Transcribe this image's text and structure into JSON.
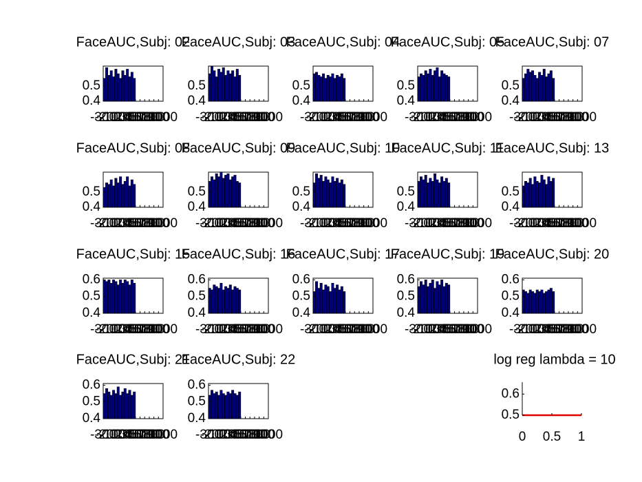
{
  "chart_data": [
    {
      "type": "bar",
      "title": "FaceAUC,Subj: 02",
      "x": [
        -300,
        -250,
        -200,
        -150,
        -100,
        -50,
        0,
        50,
        100,
        150,
        200,
        250,
        300,
        350
      ],
      "values": [
        0.55,
        0.62,
        0.57,
        0.6,
        0.56,
        0.61,
        0.58,
        0.55,
        0.6,
        0.57,
        0.61,
        0.56,
        0.59,
        0.55
      ],
      "xlim": [
        -300,
        1000
      ],
      "xticks": [
        -300,
        -200,
        -100,
        0,
        100,
        200,
        300,
        400,
        500,
        600,
        700,
        800,
        900,
        1000
      ],
      "ylim": [
        0.4,
        0.63
      ],
      "yticks": [
        0.4,
        0.5
      ],
      "color": "#00007f"
    },
    {
      "type": "bar",
      "title": "FaceAUC,Subj: 03",
      "x": [
        -300,
        -250,
        -200,
        -150,
        -100,
        -50,
        0,
        50,
        100,
        150,
        200,
        250,
        300,
        350
      ],
      "values": [
        0.58,
        0.63,
        0.6,
        0.56,
        0.61,
        0.59,
        0.62,
        0.57,
        0.6,
        0.58,
        0.6,
        0.56,
        0.61,
        0.57
      ],
      "xlim": [
        -300,
        1000
      ],
      "xticks": [
        -300,
        -200,
        -100,
        0,
        100,
        200,
        300,
        400,
        500,
        600,
        700,
        800,
        900,
        1000
      ],
      "ylim": [
        0.4,
        0.63
      ],
      "yticks": [
        0.4,
        0.5
      ],
      "color": "#00007f"
    },
    {
      "type": "bar",
      "title": "FaceAUC,Subj: 04",
      "x": [
        -300,
        -250,
        -200,
        -150,
        -100,
        -50,
        0,
        50,
        100,
        150,
        200,
        250,
        300,
        350
      ],
      "values": [
        0.58,
        0.59,
        0.57,
        0.56,
        0.58,
        0.55,
        0.57,
        0.56,
        0.58,
        0.55,
        0.57,
        0.56,
        0.58,
        0.55
      ],
      "xlim": [
        -300,
        1000
      ],
      "xticks": [
        -300,
        -200,
        -100,
        0,
        100,
        200,
        300,
        400,
        500,
        600,
        700,
        800,
        900,
        1000
      ],
      "ylim": [
        0.4,
        0.63
      ],
      "yticks": [
        0.4,
        0.5
      ],
      "color": "#00007f"
    },
    {
      "type": "bar",
      "title": "FaceAUC,Subj: 05",
      "x": [
        -300,
        -250,
        -200,
        -150,
        -100,
        -50,
        0,
        50,
        100,
        150,
        200,
        250,
        300,
        350
      ],
      "values": [
        0.56,
        0.58,
        0.57,
        0.6,
        0.58,
        0.61,
        0.57,
        0.6,
        0.62,
        0.56,
        0.6,
        0.58,
        0.57,
        0.56
      ],
      "xlim": [
        -300,
        1000
      ],
      "xticks": [
        -300,
        -200,
        -100,
        0,
        100,
        200,
        300,
        400,
        500,
        600,
        700,
        800,
        900,
        1000
      ],
      "ylim": [
        0.4,
        0.63
      ],
      "yticks": [
        0.4,
        0.5
      ],
      "color": "#00007f"
    },
    {
      "type": "bar",
      "title": "FaceAUC,Subj: 07",
      "x": [
        -300,
        -250,
        -200,
        -150,
        -100,
        -50,
        0,
        50,
        100,
        150,
        200,
        250,
        300,
        350
      ],
      "values": [
        0.55,
        0.58,
        0.61,
        0.59,
        0.6,
        0.57,
        0.55,
        0.59,
        0.57,
        0.61,
        0.56,
        0.58,
        0.6,
        0.55
      ],
      "xlim": [
        -300,
        1000
      ],
      "xticks": [
        -300,
        -200,
        -100,
        0,
        100,
        200,
        300,
        400,
        500,
        600,
        700,
        800,
        900,
        1000
      ],
      "ylim": [
        0.4,
        0.63
      ],
      "yticks": [
        0.4,
        0.5
      ],
      "color": "#00007f"
    },
    {
      "type": "bar",
      "title": "FaceAUC,Subj: 08",
      "x": [
        -300,
        -250,
        -200,
        -150,
        -100,
        -50,
        0,
        50,
        100,
        150,
        200,
        250,
        300,
        350
      ],
      "values": [
        0.53,
        0.56,
        0.55,
        0.58,
        0.54,
        0.59,
        0.56,
        0.6,
        0.55,
        0.57,
        0.6,
        0.54,
        0.58,
        0.55
      ],
      "xlim": [
        -300,
        1000
      ],
      "xticks": [
        -300,
        -200,
        -100,
        0,
        100,
        200,
        300,
        400,
        500,
        600,
        700,
        800,
        900,
        1000
      ],
      "ylim": [
        0.4,
        0.63
      ],
      "yticks": [
        0.4,
        0.5
      ],
      "color": "#00007f"
    },
    {
      "type": "bar",
      "title": "FaceAUC,Subj: 09",
      "x": [
        -300,
        -250,
        -200,
        -150,
        -100,
        -50,
        0,
        50,
        100,
        150,
        200,
        250,
        300,
        350
      ],
      "values": [
        0.57,
        0.6,
        0.58,
        0.62,
        0.6,
        0.63,
        0.59,
        0.61,
        0.62,
        0.58,
        0.6,
        0.61,
        0.57,
        0.56
      ],
      "xlim": [
        -300,
        1000
      ],
      "xticks": [
        -300,
        -200,
        -100,
        0,
        100,
        200,
        300,
        400,
        500,
        600,
        700,
        800,
        900,
        1000
      ],
      "ylim": [
        0.4,
        0.63
      ],
      "yticks": [
        0.4,
        0.5
      ],
      "color": "#00007f"
    },
    {
      "type": "bar",
      "title": "FaceAUC,Subj: 10",
      "x": [
        -300,
        -250,
        -200,
        -150,
        -100,
        -50,
        0,
        50,
        100,
        150,
        200,
        250,
        300,
        350
      ],
      "values": [
        0.56,
        0.62,
        0.59,
        0.61,
        0.57,
        0.6,
        0.58,
        0.56,
        0.6,
        0.57,
        0.59,
        0.56,
        0.58,
        0.55
      ],
      "xlim": [
        -300,
        1000
      ],
      "xticks": [
        -300,
        -200,
        -100,
        0,
        100,
        200,
        300,
        400,
        500,
        600,
        700,
        800,
        900,
        1000
      ],
      "ylim": [
        0.4,
        0.63
      ],
      "yticks": [
        0.4,
        0.5
      ],
      "color": "#00007f"
    },
    {
      "type": "bar",
      "title": "FaceAUC,Subj: 11",
      "x": [
        -300,
        -250,
        -200,
        -150,
        -100,
        -50,
        0,
        50,
        100,
        150,
        200,
        250,
        300,
        350
      ],
      "values": [
        0.57,
        0.6,
        0.58,
        0.61,
        0.56,
        0.59,
        0.57,
        0.62,
        0.58,
        0.56,
        0.6,
        0.57,
        0.59,
        0.56
      ],
      "xlim": [
        -300,
        1000
      ],
      "xticks": [
        -300,
        -200,
        -100,
        0,
        100,
        200,
        300,
        400,
        500,
        600,
        700,
        800,
        900,
        1000
      ],
      "ylim": [
        0.4,
        0.63
      ],
      "yticks": [
        0.4,
        0.5
      ],
      "color": "#00007f"
    },
    {
      "type": "bar",
      "title": "FaceAUC,Subj: 13",
      "x": [
        -300,
        -250,
        -200,
        -150,
        -100,
        -50,
        0,
        50,
        100,
        150,
        200,
        250,
        300,
        350
      ],
      "values": [
        0.54,
        0.57,
        0.56,
        0.59,
        0.55,
        0.6,
        0.57,
        0.56,
        0.61,
        0.58,
        0.55,
        0.6,
        0.57,
        0.59
      ],
      "xlim": [
        -300,
        1000
      ],
      "xticks": [
        -300,
        -200,
        -100,
        0,
        100,
        200,
        300,
        400,
        500,
        600,
        700,
        800,
        900,
        1000
      ],
      "ylim": [
        0.4,
        0.63
      ],
      "yticks": [
        0.4,
        0.5
      ],
      "color": "#00007f"
    },
    {
      "type": "bar",
      "title": "FaceAUC,Subj: 15",
      "x": [
        -300,
        -250,
        -200,
        -150,
        -100,
        -50,
        0,
        50,
        100,
        150,
        200,
        250,
        300,
        350
      ],
      "values": [
        0.6,
        0.59,
        0.6,
        0.58,
        0.6,
        0.59,
        0.57,
        0.6,
        0.58,
        0.6,
        0.59,
        0.57,
        0.6,
        0.58
      ],
      "xlim": [
        -300,
        1000
      ],
      "xticks": [
        -300,
        -200,
        -100,
        0,
        100,
        200,
        300,
        400,
        500,
        600,
        700,
        800,
        900,
        1000
      ],
      "ylim": [
        0.4,
        0.61
      ],
      "yticks": [
        0.4,
        0.5,
        0.6
      ],
      "color": "#00007f"
    },
    {
      "type": "bar",
      "title": "FaceAUC,Subj: 16",
      "x": [
        -300,
        -250,
        -200,
        -150,
        -100,
        -50,
        0,
        50,
        100,
        150,
        200,
        250,
        300,
        350
      ],
      "values": [
        0.55,
        0.54,
        0.57,
        0.56,
        0.55,
        0.58,
        0.54,
        0.56,
        0.55,
        0.57,
        0.54,
        0.56,
        0.55,
        0.54
      ],
      "xlim": [
        -300,
        1000
      ],
      "xticks": [
        -300,
        -200,
        -100,
        0,
        100,
        200,
        300,
        400,
        500,
        600,
        700,
        800,
        900,
        1000
      ],
      "ylim": [
        0.4,
        0.61
      ],
      "yticks": [
        0.4,
        0.5,
        0.6
      ],
      "color": "#00007f"
    },
    {
      "type": "bar",
      "title": "FaceAUC,Subj: 17",
      "x": [
        -300,
        -250,
        -200,
        -150,
        -100,
        -50,
        0,
        50,
        100,
        150,
        200,
        250,
        300,
        350
      ],
      "values": [
        0.53,
        0.59,
        0.55,
        0.58,
        0.54,
        0.57,
        0.56,
        0.53,
        0.58,
        0.55,
        0.57,
        0.54,
        0.56,
        0.53
      ],
      "xlim": [
        -300,
        1000
      ],
      "xticks": [
        -300,
        -200,
        -100,
        0,
        100,
        200,
        300,
        400,
        500,
        600,
        700,
        800,
        900,
        1000
      ],
      "ylim": [
        0.4,
        0.61
      ],
      "yticks": [
        0.4,
        0.5,
        0.6
      ],
      "color": "#00007f"
    },
    {
      "type": "bar",
      "title": "FaceAUC,Subj: 19",
      "x": [
        -300,
        -250,
        -200,
        -150,
        -100,
        -50,
        0,
        50,
        100,
        150,
        200,
        250,
        300,
        350
      ],
      "values": [
        0.56,
        0.59,
        0.57,
        0.6,
        0.56,
        0.58,
        0.6,
        0.55,
        0.59,
        0.57,
        0.6,
        0.56,
        0.58,
        0.57
      ],
      "xlim": [
        -300,
        1000
      ],
      "xticks": [
        -300,
        -200,
        -100,
        0,
        100,
        200,
        300,
        400,
        500,
        600,
        700,
        800,
        900,
        1000
      ],
      "ylim": [
        0.4,
        0.61
      ],
      "yticks": [
        0.4,
        0.5,
        0.6
      ],
      "color": "#00007f"
    },
    {
      "type": "bar",
      "title": "FaceAUC,Subj: 20",
      "x": [
        -300,
        -250,
        -200,
        -150,
        -100,
        -50,
        0,
        50,
        100,
        150,
        200,
        250,
        300,
        350
      ],
      "values": [
        0.54,
        0.53,
        0.52,
        0.54,
        0.53,
        0.52,
        0.54,
        0.53,
        0.54,
        0.52,
        0.53,
        0.54,
        0.55,
        0.53
      ],
      "xlim": [
        -300,
        1000
      ],
      "xticks": [
        -300,
        -200,
        -100,
        0,
        100,
        200,
        300,
        400,
        500,
        600,
        700,
        800,
        900,
        1000
      ],
      "ylim": [
        0.4,
        0.61
      ],
      "yticks": [
        0.4,
        0.5,
        0.6
      ],
      "color": "#00007f"
    },
    {
      "type": "bar",
      "title": "FaceAUC,Subj: 21",
      "x": [
        -300,
        -250,
        -200,
        -150,
        -100,
        -50,
        0,
        50,
        100,
        150,
        200,
        250,
        300,
        350
      ],
      "values": [
        0.55,
        0.58,
        0.56,
        0.54,
        0.57,
        0.55,
        0.59,
        0.54,
        0.56,
        0.58,
        0.55,
        0.57,
        0.54,
        0.56
      ],
      "xlim": [
        -300,
        1000
      ],
      "xticks": [
        -300,
        -200,
        -100,
        0,
        100,
        200,
        300,
        400,
        500,
        600,
        700,
        800,
        900,
        1000
      ],
      "ylim": [
        0.4,
        0.61
      ],
      "yticks": [
        0.4,
        0.5,
        0.6
      ],
      "color": "#00007f"
    },
    {
      "type": "bar",
      "title": "FaceAUC,Subj: 22",
      "x": [
        -300,
        -250,
        -200,
        -150,
        -100,
        -50,
        0,
        50,
        100,
        150,
        200,
        250,
        300,
        350
      ],
      "values": [
        0.54,
        0.57,
        0.55,
        0.56,
        0.54,
        0.57,
        0.55,
        0.54,
        0.56,
        0.55,
        0.57,
        0.55,
        0.54,
        0.56
      ],
      "xlim": [
        -300,
        1000
      ],
      "xticks": [
        -300,
        -200,
        -100,
        0,
        100,
        200,
        300,
        400,
        500,
        600,
        700,
        800,
        900,
        1000
      ],
      "ylim": [
        0.4,
        0.61
      ],
      "yticks": [
        0.4,
        0.5,
        0.6
      ],
      "color": "#00007f"
    },
    {
      "type": "line",
      "title": "log reg lambda = 10",
      "x": [
        0,
        1
      ],
      "values": [
        0.5,
        0.5
      ],
      "xlim": [
        0,
        1
      ],
      "xticks": [
        0,
        0.5,
        1
      ],
      "ylim": [
        0.5,
        0.65
      ],
      "yticks": [
        0.5,
        0.6
      ],
      "color": "#e00000"
    }
  ]
}
